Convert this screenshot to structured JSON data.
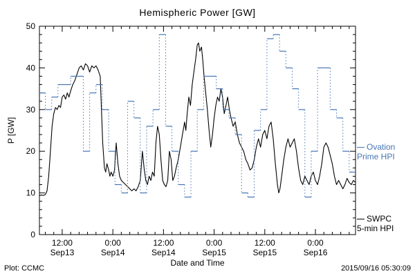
{
  "title": "Hemispheric Power [GW]",
  "ylabel": "P [GW]",
  "xlabel": "Date and Time",
  "footer": {
    "source": "Plot: CCMC",
    "timestamp": "2015/09/16 05:30:09"
  },
  "legend": {
    "ovation": {
      "line1": "Ovation",
      "line2": "Prime HPI",
      "color": "#4575b4"
    },
    "swpc": {
      "line1": "SWPC",
      "line2": "5-min HPI",
      "color": "#000000"
    }
  },
  "chart_data": {
    "type": "line",
    "title": "Hemispheric Power [GW]",
    "xlabel": "Date and Time",
    "ylabel": "P [GW]",
    "x_unit": "hours since 2015-09-13 00:00",
    "x_range": [
      6.6,
      81.5
    ],
    "y_range": [
      0,
      50
    ],
    "y_ticks": [
      0,
      10,
      20,
      30,
      40,
      50
    ],
    "y_minor_step": 2,
    "x_minor_step": 2,
    "grid": false,
    "legend_position": "right-outside",
    "x_ticks": [
      {
        "t": 12,
        "time": "12:00",
        "date": "Sep13"
      },
      {
        "t": 24,
        "time": "0:00",
        "date": "Sep14"
      },
      {
        "t": 36,
        "time": "12:00",
        "date": "Sep14"
      },
      {
        "t": 48,
        "time": "0:00",
        "date": "Sep15"
      },
      {
        "t": 60,
        "time": "12:00",
        "date": "Sep15"
      },
      {
        "t": 72,
        "time": "0:00",
        "date": "Sep16"
      }
    ],
    "series": [
      {
        "name": "SWPC 5-min HPI",
        "style": "line",
        "color": "#000000",
        "points": [
          [
            6.6,
            9.3
          ],
          [
            7,
            9.5
          ],
          [
            7.5,
            9.4
          ],
          [
            8,
            9.6
          ],
          [
            8.4,
            10.5
          ],
          [
            8.8,
            14
          ],
          [
            9.2,
            20
          ],
          [
            9.6,
            26
          ],
          [
            10,
            29
          ],
          [
            10.4,
            30.5
          ],
          [
            10.8,
            30
          ],
          [
            11.2,
            31
          ],
          [
            11.6,
            30.5
          ],
          [
            12,
            33
          ],
          [
            12.4,
            33.5
          ],
          [
            12.8,
            32.5
          ],
          [
            13.2,
            34
          ],
          [
            13.6,
            33
          ],
          [
            14,
            34.5
          ],
          [
            14.5,
            36
          ],
          [
            15,
            37
          ],
          [
            15.5,
            38.5
          ],
          [
            16,
            40
          ],
          [
            16.5,
            40.5
          ],
          [
            17,
            39.5
          ],
          [
            17.5,
            41
          ],
          [
            18,
            40.5
          ],
          [
            18.5,
            39
          ],
          [
            19,
            40.5
          ],
          [
            19.5,
            40
          ],
          [
            20,
            40.5
          ],
          [
            20.5,
            39.5
          ],
          [
            21,
            38
          ],
          [
            21.3,
            30
          ],
          [
            21.6,
            22
          ],
          [
            22,
            16
          ],
          [
            22.3,
            15
          ],
          [
            22.6,
            17
          ],
          [
            23,
            15.5
          ],
          [
            23.3,
            14
          ],
          [
            23.6,
            15
          ],
          [
            24,
            14
          ],
          [
            24.4,
            15.5
          ],
          [
            24.8,
            22
          ],
          [
            25.2,
            17
          ],
          [
            25.6,
            14
          ],
          [
            26,
            13
          ],
          [
            26.5,
            12.5
          ],
          [
            27,
            12
          ],
          [
            27.5,
            11.5
          ],
          [
            28,
            11
          ],
          [
            28.5,
            10.5
          ],
          [
            29,
            11
          ],
          [
            29.5,
            10.5
          ],
          [
            30,
            11.5
          ],
          [
            30.5,
            13
          ],
          [
            31,
            20
          ],
          [
            31.4,
            16
          ],
          [
            31.8,
            13
          ],
          [
            32.2,
            12
          ],
          [
            32.6,
            14
          ],
          [
            33,
            13
          ],
          [
            33.4,
            15
          ],
          [
            33.8,
            14
          ],
          [
            34.2,
            22
          ],
          [
            34.6,
            26
          ],
          [
            35,
            24
          ],
          [
            35.4,
            18
          ],
          [
            35.8,
            13
          ],
          [
            36.2,
            12
          ],
          [
            36.6,
            11.5
          ],
          [
            37,
            13
          ],
          [
            37.4,
            20
          ],
          [
            37.8,
            18
          ],
          [
            38.2,
            13
          ],
          [
            38.6,
            14
          ],
          [
            39,
            16
          ],
          [
            39.5,
            18
          ],
          [
            40,
            21
          ],
          [
            40.5,
            24
          ],
          [
            41,
            27
          ],
          [
            41.3,
            25
          ],
          [
            41.6,
            29
          ],
          [
            42,
            33
          ],
          [
            42.4,
            31
          ],
          [
            42.8,
            36
          ],
          [
            43.2,
            39
          ],
          [
            43.6,
            42
          ],
          [
            44,
            45.5
          ],
          [
            44.3,
            46
          ],
          [
            44.6,
            44
          ],
          [
            45,
            45
          ],
          [
            45.3,
            42
          ],
          [
            45.6,
            38
          ],
          [
            46,
            34
          ],
          [
            46.4,
            30
          ],
          [
            46.8,
            25
          ],
          [
            47.2,
            21
          ],
          [
            47.6,
            24
          ],
          [
            48,
            28
          ],
          [
            48.4,
            31
          ],
          [
            48.8,
            33
          ],
          [
            49.2,
            32
          ],
          [
            49.6,
            35
          ],
          [
            50,
            33
          ],
          [
            50.4,
            29
          ],
          [
            50.8,
            31
          ],
          [
            51.2,
            33
          ],
          [
            51.6,
            30
          ],
          [
            52,
            28
          ],
          [
            52.5,
            26
          ],
          [
            53,
            27
          ],
          [
            53.5,
            24
          ],
          [
            54,
            22
          ],
          [
            54.5,
            21
          ],
          [
            55,
            20
          ],
          [
            55.5,
            18
          ],
          [
            56,
            17
          ],
          [
            56.5,
            15.5
          ],
          [
            57,
            16
          ],
          [
            57.5,
            18
          ],
          [
            58,
            21
          ],
          [
            58.5,
            23
          ],
          [
            59,
            21
          ],
          [
            59.5,
            24
          ],
          [
            60,
            25
          ],
          [
            60.5,
            23
          ],
          [
            61,
            26
          ],
          [
            61.5,
            27
          ],
          [
            62,
            23
          ],
          [
            62.5,
            17
          ],
          [
            63,
            12
          ],
          [
            63.3,
            10
          ],
          [
            63.6,
            11
          ],
          [
            64,
            14
          ],
          [
            64.5,
            18
          ],
          [
            65,
            21
          ],
          [
            65.5,
            23
          ],
          [
            66,
            21
          ],
          [
            66.5,
            22
          ],
          [
            67,
            23
          ],
          [
            67.5,
            20
          ],
          [
            68,
            16
          ],
          [
            68.5,
            13
          ],
          [
            69,
            12
          ],
          [
            69.5,
            14
          ],
          [
            70,
            13
          ],
          [
            70.5,
            12
          ],
          [
            71,
            14
          ],
          [
            71.5,
            15
          ],
          [
            72,
            13
          ],
          [
            72.5,
            12
          ],
          [
            73,
            14
          ],
          [
            73.5,
            17
          ],
          [
            74,
            21
          ],
          [
            74.5,
            22
          ],
          [
            75,
            21
          ],
          [
            75.5,
            19
          ],
          [
            76,
            17
          ],
          [
            76.5,
            14
          ],
          [
            77,
            12
          ],
          [
            77.5,
            13
          ],
          [
            78,
            12
          ],
          [
            78.5,
            11
          ],
          [
            79,
            12
          ],
          [
            79.5,
            13.5
          ],
          [
            80,
            12.5
          ],
          [
            80.5,
            12
          ],
          [
            81,
            13
          ],
          [
            81.5,
            12.5
          ]
        ]
      },
      {
        "name": "Ovation Prime HPI",
        "style": "step",
        "color": "#4575b4",
        "points": [
          [
            6.6,
            34
          ],
          [
            8,
            30
          ],
          [
            9.5,
            33
          ],
          [
            11,
            36
          ],
          [
            12.5,
            36
          ],
          [
            14,
            38
          ],
          [
            15.5,
            38
          ],
          [
            17,
            20
          ],
          [
            18.5,
            34
          ],
          [
            20,
            36
          ],
          [
            21.5,
            30
          ],
          [
            23,
            20
          ],
          [
            24.5,
            12
          ],
          [
            26,
            10
          ],
          [
            27.5,
            32
          ],
          [
            29,
            28
          ],
          [
            30.5,
            10
          ],
          [
            32,
            26
          ],
          [
            33.5,
            30
          ],
          [
            35,
            48
          ],
          [
            36.5,
            26
          ],
          [
            38,
            20
          ],
          [
            39.5,
            12
          ],
          [
            41,
            9
          ],
          [
            42.5,
            20
          ],
          [
            44,
            30
          ],
          [
            45.5,
            38
          ],
          [
            47,
            38
          ],
          [
            48.5,
            35
          ],
          [
            50,
            30
          ],
          [
            51.5,
            28
          ],
          [
            53,
            24
          ],
          [
            54.5,
            10
          ],
          [
            56,
            9
          ],
          [
            57.5,
            25
          ],
          [
            59,
            30
          ],
          [
            60.5,
            47
          ],
          [
            62,
            48
          ],
          [
            63.5,
            44
          ],
          [
            65,
            40
          ],
          [
            66.5,
            35
          ],
          [
            68,
            30
          ],
          [
            69.5,
            9
          ],
          [
            71,
            20
          ],
          [
            72.5,
            40
          ],
          [
            74,
            40
          ],
          [
            75.5,
            30
          ],
          [
            77,
            28
          ],
          [
            78.5,
            20
          ],
          [
            80,
            15
          ]
        ]
      }
    ]
  }
}
